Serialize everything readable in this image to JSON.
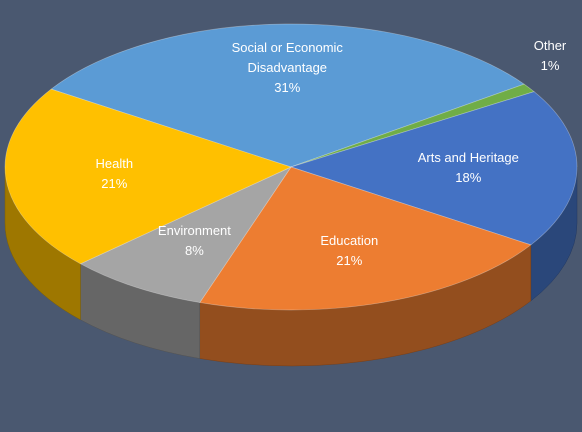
{
  "chart_data": {
    "type": "pie",
    "categories": [
      "Social or Economic Disadvantage",
      "Other",
      "Arts and Heritage",
      "Education",
      "Environment",
      "Health"
    ],
    "values": [
      31,
      1,
      18,
      21,
      8,
      21
    ],
    "value_labels": [
      "31%",
      "1%",
      "18%",
      "21%",
      "8%",
      "21%"
    ],
    "colors": [
      "#5b9bd5",
      "#70ad47",
      "#4472c4",
      "#ed7d31",
      "#a5a5a5",
      "#ffc000"
    ]
  }
}
